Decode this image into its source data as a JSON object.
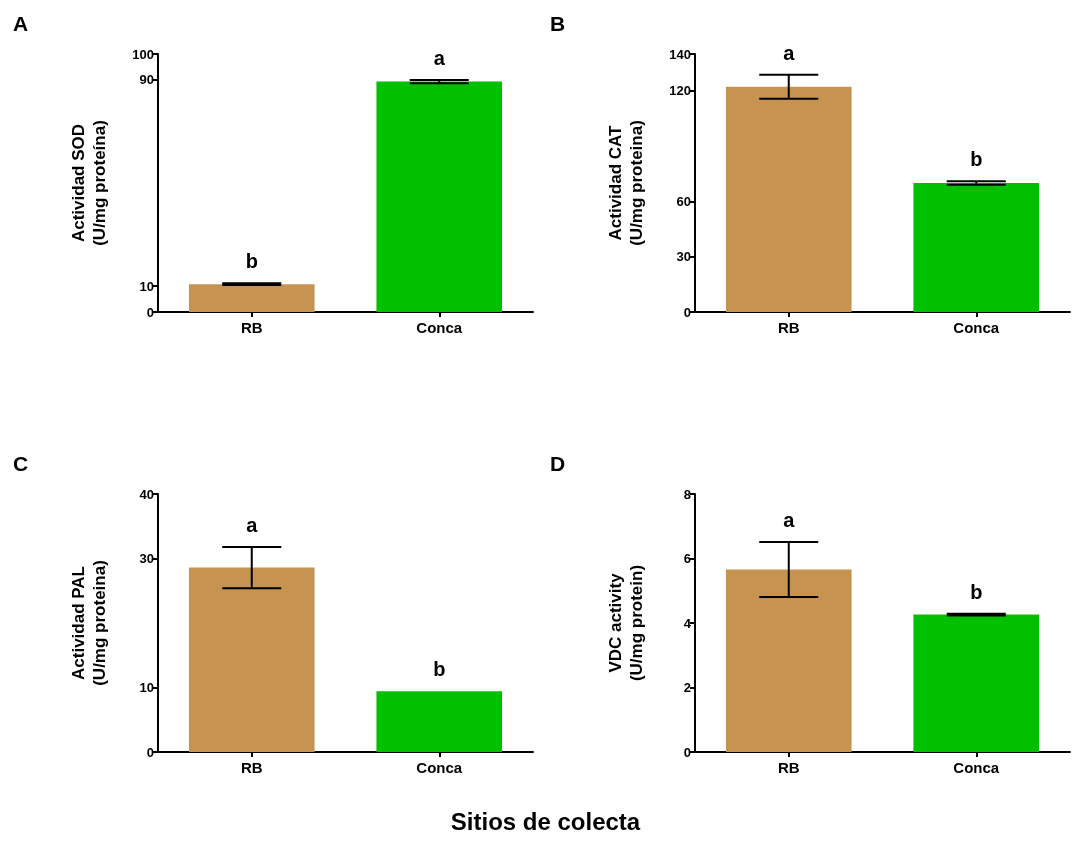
{
  "chart_data": [
    {
      "type": "bar",
      "title": "A",
      "ylabel": "Actividad SOD\n(U/mg proteína)",
      "categories": [
        "RB",
        "Conca"
      ],
      "values": [
        10.8,
        89.3
      ],
      "colors": [
        "#c69350",
        "#00c000"
      ],
      "errors": [
        0.35,
        0.6
      ],
      "value_labels": [
        "b",
        "a"
      ],
      "ylim": [
        0,
        100
      ],
      "yticks": [
        0,
        10,
        90,
        100
      ]
    },
    {
      "type": "bar",
      "title": "B",
      "ylabel": "Actividad CAT\n(U/mg proteina)",
      "categories": [
        "RB",
        "Conca"
      ],
      "values": [
        122.2,
        70
      ],
      "colors": [
        "#c69350",
        "#00c000"
      ],
      "errors": [
        6.5,
        1
      ],
      "value_labels": [
        "a",
        "b"
      ],
      "ylim": [
        0,
        140
      ],
      "yticks": [
        0,
        30,
        60,
        120,
        140
      ]
    },
    {
      "type": "bar",
      "title": "C",
      "ylabel": "Actividad PAL\n(U/mg proteina)",
      "xlabel": "Sitios de colecta",
      "categories": [
        "RB",
        "Conca"
      ],
      "values": [
        28.6,
        9.4
      ],
      "colors": [
        "#c69350",
        "#00c000"
      ],
      "errors": [
        3.2,
        null
      ],
      "value_labels": [
        "a",
        "b"
      ],
      "ylim": [
        0,
        40
      ],
      "yticks": [
        0,
        10,
        30,
        40
      ]
    },
    {
      "type": "bar",
      "title": "D",
      "ylabel": "VDC activity\n(U/mg protein)",
      "categories": [
        "RB",
        "Conca"
      ],
      "values": [
        5.66,
        4.26
      ],
      "colors": [
        "#c69350",
        "#00c000"
      ],
      "errors": [
        0.85,
        0.03
      ],
      "value_labels": [
        "a",
        "b"
      ],
      "ylim": [
        0,
        8
      ],
      "yticks": [
        0,
        2,
        4,
        6,
        8
      ]
    }
  ]
}
